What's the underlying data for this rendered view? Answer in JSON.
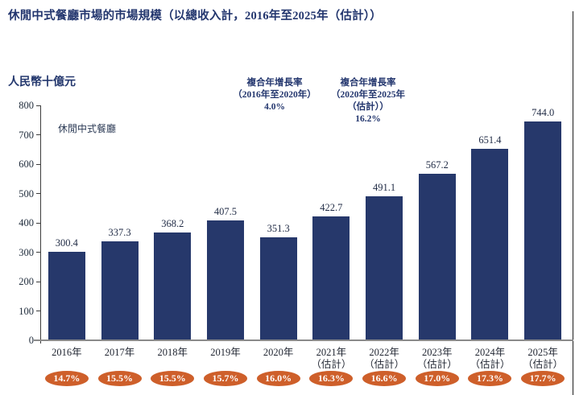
{
  "title": "休閒中式餐廳市場的市場規模（以總收入計，2016年至2025年（估計））",
  "y_axis": {
    "unit_label": "人民幣十億元",
    "ticks": [
      0,
      100,
      200,
      300,
      400,
      500,
      600,
      700,
      800
    ]
  },
  "legend": {
    "series_label": "休閒中式餐廳"
  },
  "annotations": {
    "cagr_2016_2020": {
      "lines": [
        "複合年增長率",
        "（2016年至2020年）",
        "4.0%"
      ]
    },
    "cagr_2020_2025": {
      "lines": [
        "複合年增長率",
        "（2020年至2025年",
        "（估計））",
        "16.2%"
      ]
    }
  },
  "chart_data": {
    "type": "bar",
    "title": "休閒中式餐廳市場的市場規模（以總收入計，2016年至2025年（估計））",
    "ylabel": "人民幣十億元",
    "ylim": [
      0,
      800
    ],
    "grid": false,
    "legend_position": "top-left-inside",
    "categories": [
      [
        "2016年"
      ],
      [
        "2017年"
      ],
      [
        "2018年"
      ],
      [
        "2019年"
      ],
      [
        "2020年"
      ],
      [
        "2021年",
        "（估計）"
      ],
      [
        "2022年",
        "（估計）"
      ],
      [
        "2023年",
        "（估計）"
      ],
      [
        "2024年",
        "（估計）"
      ],
      [
        "2025年",
        "（估計）"
      ]
    ],
    "series": [
      {
        "name": "休閒中式餐廳",
        "values": [
          300.4,
          337.3,
          368.2,
          407.5,
          351.3,
          422.7,
          491.1,
          567.2,
          651.4,
          744.0
        ]
      }
    ],
    "value_labels": [
      "300.4",
      "337.3",
      "368.2",
      "407.5",
      "351.3",
      "422.7",
      "491.1",
      "567.2",
      "651.4",
      "744.0"
    ],
    "percent_labels": [
      "14.7%",
      "15.5%",
      "15.5%",
      "15.7%",
      "16.0%",
      "16.3%",
      "16.6%",
      "17.0%",
      "17.3%",
      "17.7%"
    ],
    "cagr_annotations": [
      "複合年增長率（2016年至2020年）4.0%",
      "複合年增長率（2020年至2025年（估計））16.2%"
    ]
  },
  "colors": {
    "bar": "#26386b",
    "title_text": "#23366e",
    "badge": "#ce5f2a",
    "badge_text": "#ffffff",
    "baseline": "#8a8a8a"
  }
}
